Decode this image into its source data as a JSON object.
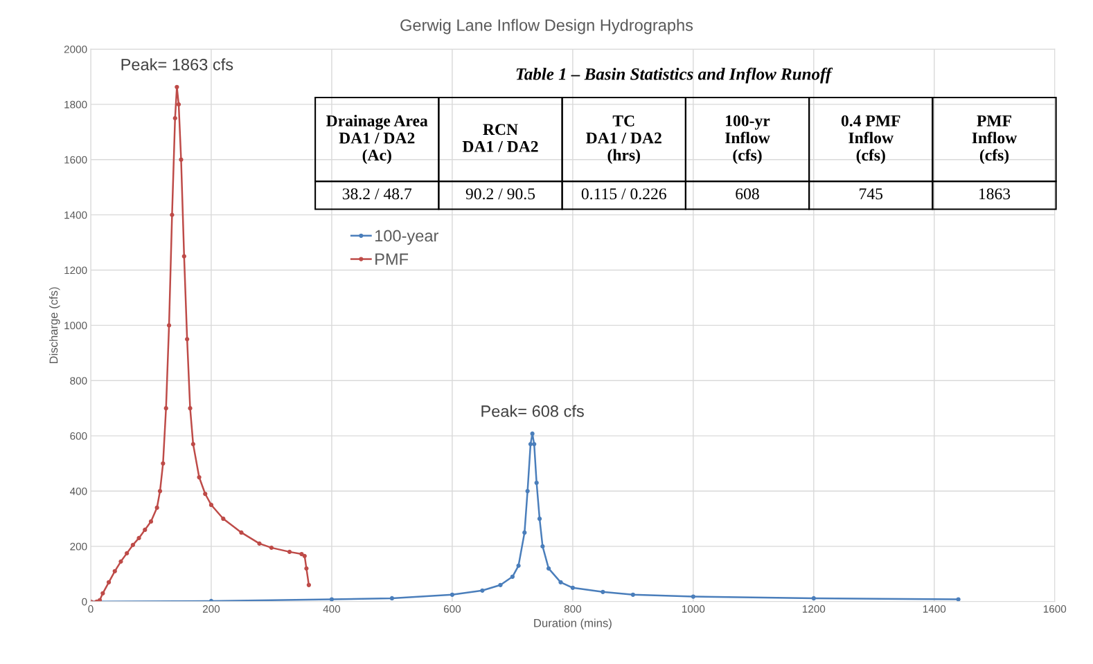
{
  "chart_data": [
    {
      "type": "line",
      "title": "Gerwig Lane Inflow Design Hydrographs",
      "xlabel": "Duration (mins)",
      "ylabel": "Discharge (cfs)",
      "xlim": [
        0,
        1600
      ],
      "ylim": [
        0,
        2000
      ],
      "xticks": [
        0,
        200,
        400,
        600,
        800,
        1000,
        1200,
        1400,
        1600
      ],
      "yticks": [
        0,
        200,
        400,
        600,
        800,
        1000,
        1200,
        1400,
        1600,
        1800,
        2000
      ],
      "grid": true,
      "legend": "top left",
      "marker": "circle",
      "line_style": "solid",
      "series": [
        {
          "name": "100-year",
          "color": "#4a7ebb",
          "x": [
            0,
            200,
            400,
            500,
            600,
            650,
            680,
            700,
            710,
            720,
            725,
            730,
            733,
            736,
            740,
            745,
            750,
            760,
            780,
            800,
            850,
            900,
            1000,
            1200,
            1440
          ],
          "values": [
            0,
            2,
            8,
            12,
            25,
            40,
            60,
            90,
            130,
            250,
            400,
            570,
            608,
            570,
            430,
            300,
            200,
            120,
            70,
            50,
            35,
            25,
            18,
            12,
            8
          ]
        },
        {
          "name": "PMF",
          "color": "#be4b48",
          "x": [
            0,
            10,
            15,
            20,
            30,
            40,
            50,
            60,
            70,
            80,
            90,
            100,
            110,
            115,
            120,
            125,
            130,
            135,
            140,
            143,
            146,
            150,
            155,
            160,
            165,
            170,
            180,
            190,
            200,
            220,
            250,
            280,
            300,
            330,
            350,
            355,
            358,
            362
          ],
          "values": [
            0,
            0,
            5,
            30,
            70,
            110,
            145,
            175,
            205,
            230,
            260,
            290,
            340,
            400,
            500,
            700,
            1000,
            1400,
            1750,
            1863,
            1800,
            1600,
            1250,
            950,
            700,
            570,
            450,
            390,
            350,
            300,
            250,
            210,
            195,
            180,
            172,
            165,
            120,
            60
          ]
        }
      ],
      "annotations": [
        {
          "text": "Peak= 1863 cfs",
          "x": 143,
          "y": 1863
        },
        {
          "text": "Peak= 608 cfs",
          "x": 733,
          "y": 608
        }
      ]
    },
    {
      "type": "other",
      "title": "Table 1 – Basin Statistics and Inflow Runoff",
      "annotations": [
        "Drainage Area\nDA1 / DA2\n(Ac)",
        "RCN\nDA1 / DA2",
        "TC\nDA1 / DA2\n(hrs)",
        "100-yr\nInflow\n(cfs)",
        "0.4 PMF\nInflow\n(cfs)",
        "PMF\nInflow\n(cfs)",
        "38.2 / 48.7",
        "90.2 / 90.5",
        "0.115 / 0.226",
        "608",
        "745",
        "1863"
      ]
    }
  ]
}
